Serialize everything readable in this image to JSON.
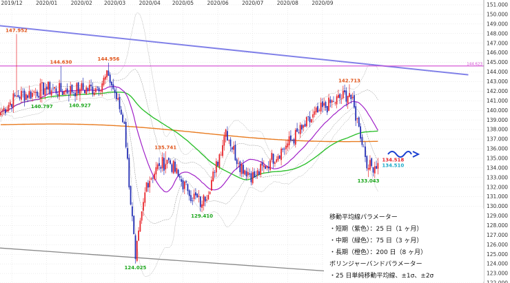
{
  "chart_data": {
    "type": "candlestick",
    "title": "",
    "xlabel": "",
    "ylabel": "",
    "ylim": [
      122,
      151.5
    ],
    "y_ticks": [
      "122.000",
      "123.000",
      "124.000",
      "125.000",
      "126.000",
      "127.000",
      "128.000",
      "129.000",
      "130.000",
      "131.000",
      "132.000",
      "133.000",
      "134.000",
      "135.000",
      "136.000",
      "137.000",
      "138.000",
      "139.000",
      "140.000",
      "141.000",
      "142.000",
      "143.000",
      "144.000",
      "145.000",
      "146.000",
      "147.000",
      "148.000",
      "149.000",
      "150.000",
      "151.000"
    ],
    "x_ticks": [
      "2019/12",
      "2020/01",
      "2020/02",
      "2020/03",
      "2020/04",
      "2020/05",
      "2020/06",
      "2020/07",
      "2020/08",
      "2020/09"
    ],
    "grid": true,
    "colors": {
      "up": "#e8262c",
      "down": "#2530b5",
      "ma_short": "#a020c8",
      "ma_mid": "#2ec02e",
      "ma_long": "#e87a1e",
      "bollinger": "#888888",
      "trend_upper": "#8080e8",
      "trend_lower": "#888888",
      "horizontal_line": "#d046d0",
      "ann_high": "#e0541a",
      "ann_low": "#1aa61a",
      "price_up": "#e8262c",
      "price_now": "#1aa8c8",
      "arrow": "#1a3fd0"
    },
    "horizontal_line": {
      "value": 144.623,
      "label": "144.623"
    },
    "annotations": [
      {
        "label": "147.952",
        "x_day": 10,
        "y": 147.952,
        "kind": "high"
      },
      {
        "label": "144.630",
        "x_day": 38,
        "y": 144.63,
        "kind": "high"
      },
      {
        "label": "144.956",
        "x_day": 68,
        "y": 144.956,
        "kind": "high"
      },
      {
        "label": "140.797",
        "x_day": 26,
        "y": 140.797,
        "kind": "low"
      },
      {
        "label": "140.927",
        "x_day": 50,
        "y": 140.927,
        "kind": "low"
      },
      {
        "label": "135.741",
        "x_day": 104,
        "y": 135.741,
        "kind": "high"
      },
      {
        "label": "124.025",
        "x_day": 85,
        "y": 124.025,
        "kind": "low"
      },
      {
        "label": "129.410",
        "x_day": 127,
        "y": 129.41,
        "kind": "low"
      },
      {
        "label": "142.713",
        "x_day": 220,
        "y": 142.713,
        "kind": "high"
      },
      {
        "label": "133.043",
        "x_day": 232,
        "y": 133.043,
        "kind": "low"
      }
    ],
    "price_labels": [
      {
        "label": "134.518",
        "y": 134.518,
        "kind": "up"
      },
      {
        "label": "134.510",
        "y": 134.51,
        "kind": "now"
      }
    ],
    "trendlines": [
      {
        "name": "upper",
        "from": [
          -5,
          148.9
        ],
        "to": [
          295,
          143.7
        ]
      },
      {
        "name": "lower",
        "from": [
          -5,
          125.7
        ],
        "to": [
          295,
          122.2
        ]
      }
    ],
    "anchors": {
      "days": [
        0,
        10,
        20,
        28,
        40,
        50,
        60,
        68,
        72,
        78,
        85,
        92,
        100,
        106,
        112,
        118,
        127,
        135,
        142,
        150,
        160,
        170,
        180,
        190,
        200,
        210,
        220,
        226,
        232,
        238
      ],
      "prices": [
        139.8,
        141.5,
        141.8,
        142.3,
        142.0,
        142.2,
        142.3,
        143.6,
        141.8,
        138.6,
        124.5,
        132.5,
        134.2,
        134.8,
        133.1,
        131.6,
        130.2,
        133.5,
        138.0,
        134.5,
        133.0,
        134.8,
        136.3,
        138.0,
        139.8,
        140.9,
        141.8,
        138.3,
        134.0,
        134.51
      ]
    },
    "series": [
      {
        "name": "25日",
        "kind": "ma_short",
        "period": 25
      },
      {
        "name": "75日",
        "kind": "ma_mid",
        "period": 75
      },
      {
        "name": "200日",
        "kind": "ma_long",
        "period": 200
      },
      {
        "name": "±1σ",
        "kind": "bollinger",
        "sigma": 1
      },
      {
        "name": "±2σ",
        "kind": "bollinger",
        "sigma": 2
      }
    ]
  },
  "legend": {
    "title1": "移動平均線パラメーター",
    "line1": "・短期（紫色）：25 日（1 ヶ月）",
    "line2": "・中期（緑色）：75 日（3 ヶ月）",
    "line3": "・長期（橙色）：200 日（8 ヶ月）",
    "title2": "ボリンジャーバンドパラメーター",
    "line4": "・25 日単純移動平均線、±1σ、±2σ"
  }
}
